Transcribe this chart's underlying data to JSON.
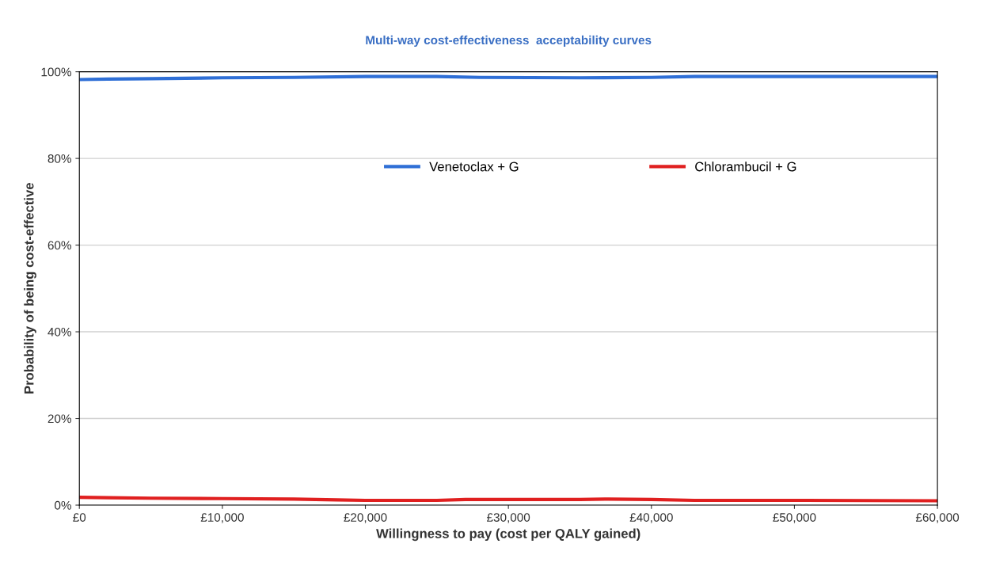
{
  "chart_data": {
    "type": "line",
    "title": "Multi-way cost-effectiveness  acceptability curves",
    "xlabel": "Willingness to pay (cost per QALY gained)",
    "ylabel": "Probability of being cost-effective",
    "series": [
      {
        "name": "Venetoclax + G",
        "color": "#2f6fd6",
        "x": [
          0,
          2000,
          5000,
          10000,
          15000,
          20000,
          25000,
          28000,
          35000,
          40000,
          43000,
          50000,
          60000
        ],
        "values": [
          98.2,
          98.3,
          98.4,
          98.6,
          98.7,
          98.9,
          98.9,
          98.7,
          98.6,
          98.7,
          98.9,
          98.9,
          98.9
        ]
      },
      {
        "name": "Chlorambucil + G",
        "color": "#e02020",
        "x": [
          0,
          2000,
          5000,
          10000,
          15000,
          18000,
          20000,
          25000,
          27000,
          35000,
          37000,
          40000,
          43000,
          50000,
          60000
        ],
        "values": [
          1.8,
          1.7,
          1.6,
          1.5,
          1.4,
          1.2,
          1.1,
          1.1,
          1.3,
          1.3,
          1.4,
          1.3,
          1.1,
          1.1,
          1.0
        ]
      }
    ],
    "xlim": [
      0,
      60000
    ],
    "ylim": [
      0,
      100
    ],
    "xticks": [
      {
        "value": 0,
        "label": "£0"
      },
      {
        "value": 10000,
        "label": "£10,000"
      },
      {
        "value": 20000,
        "label": "£20,000"
      },
      {
        "value": 30000,
        "label": "£30,000"
      },
      {
        "value": 40000,
        "label": "£40,000"
      },
      {
        "value": 50000,
        "label": "£50,000"
      },
      {
        "value": 60000,
        "label": "£60,000"
      }
    ],
    "yticks": [
      {
        "value": 0,
        "label": "0%"
      },
      {
        "value": 20,
        "label": "20%"
      },
      {
        "value": 40,
        "label": "40%"
      },
      {
        "value": 60,
        "label": "60%"
      },
      {
        "value": 80,
        "label": "80%"
      },
      {
        "value": 100,
        "label": "100%"
      }
    ],
    "grid": "y",
    "legend": "top right",
    "marker": "none",
    "line_style": "solid"
  }
}
